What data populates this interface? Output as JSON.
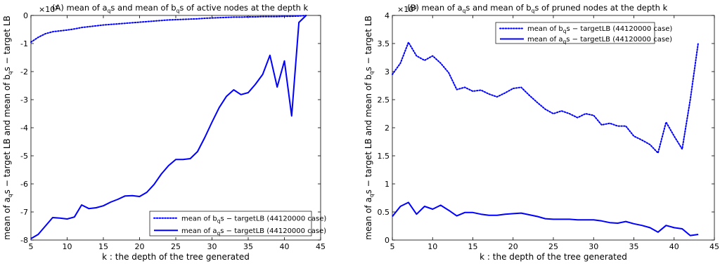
{
  "chart_data": [
    {
      "type": "line",
      "title_parts": [
        "(A) mean of a",
        "q",
        "s and mean of b",
        "q",
        "s of active nodes at the depth k"
      ],
      "xlabel": "k : the depth of the tree generated",
      "ylabel_parts": [
        "mean of a",
        "q",
        "s − target LB and mean of b",
        "q",
        "s − target LB"
      ],
      "exponent_label": "×10",
      "exponent_power": "5",
      "xlim": [
        5,
        45
      ],
      "ylim": [
        -8,
        0
      ],
      "x_ticks": [
        "5",
        "10",
        "15",
        "20",
        "25",
        "30",
        "35",
        "40",
        "45"
      ],
      "y_ticks": [
        "-8",
        "-7",
        "-6",
        "-5",
        "-4",
        "-3",
        "-2",
        "-1",
        "0"
      ],
      "legend_placement": "bottom-right",
      "series": [
        {
          "name_parts": [
            "mean of b",
            "q",
            "s − targetLB  (44120000 case)"
          ],
          "style": "dotted",
          "color": "#0000FF",
          "x": [
            5,
            6,
            7,
            8,
            9,
            10,
            11,
            12,
            13,
            14,
            15,
            16,
            17,
            18,
            19,
            20,
            21,
            22,
            23,
            24,
            25,
            26,
            27,
            28,
            29,
            30,
            31,
            32,
            33,
            34,
            35,
            36,
            37,
            38,
            39,
            40,
            41,
            42,
            43
          ],
          "y": [
            -0.95,
            -0.78,
            -0.65,
            -0.58,
            -0.55,
            -0.52,
            -0.48,
            -0.43,
            -0.4,
            -0.37,
            -0.34,
            -0.32,
            -0.3,
            -0.28,
            -0.26,
            -0.24,
            -0.22,
            -0.2,
            -0.18,
            -0.16,
            -0.15,
            -0.14,
            -0.13,
            -0.12,
            -0.1,
            -0.09,
            -0.08,
            -0.07,
            -0.06,
            -0.06,
            -0.05,
            -0.05,
            -0.04,
            -0.04,
            -0.04,
            -0.03,
            -0.03,
            -0.02,
            0.0
          ]
        },
        {
          "name_parts": [
            "mean of a",
            "q",
            "s − targetLB  (44120000 case)"
          ],
          "style": "solid",
          "color": "#0000FF",
          "x": [
            5,
            6,
            7,
            8,
            9,
            10,
            11,
            12,
            13,
            14,
            15,
            16,
            17,
            18,
            19,
            20,
            21,
            22,
            23,
            24,
            25,
            26,
            27,
            28,
            29,
            30,
            31,
            32,
            33,
            34,
            35,
            36,
            37,
            38,
            39,
            40,
            41,
            42,
            43
          ],
          "y": [
            -7.95,
            -7.8,
            -7.5,
            -7.2,
            -7.22,
            -7.25,
            -7.18,
            -6.75,
            -6.88,
            -6.85,
            -6.78,
            -6.65,
            -6.55,
            -6.43,
            -6.42,
            -6.45,
            -6.3,
            -6.02,
            -5.65,
            -5.35,
            -5.13,
            -5.13,
            -5.1,
            -4.85,
            -4.35,
            -3.8,
            -3.28,
            -2.88,
            -2.65,
            -2.82,
            -2.75,
            -2.45,
            -2.1,
            -1.42,
            -2.55,
            -1.62,
            -3.58,
            -0.25,
            0.0
          ]
        }
      ]
    },
    {
      "type": "line",
      "title_parts": [
        "(B) mean of a",
        "q",
        "s and mean of b",
        "q",
        "s of pruned nodes at the depth k"
      ],
      "xlabel": "k : the depth of the tree generated",
      "ylabel_parts": [
        "mean of a",
        "q",
        "s − target LB and mean of b",
        "q",
        "s − target LB"
      ],
      "exponent_label": "×10",
      "exponent_power": "4",
      "xlim": [
        5,
        45
      ],
      "ylim": [
        0,
        4
      ],
      "x_ticks": [
        "5",
        "10",
        "15",
        "20",
        "25",
        "30",
        "35",
        "40",
        "45"
      ],
      "y_ticks": [
        "0",
        "0.5",
        "1",
        "1.5",
        "2",
        "2.5",
        "3",
        "3.5",
        "4"
      ],
      "legend_placement": "top-right",
      "series": [
        {
          "name_parts": [
            "mean of b",
            "q",
            "s − targetLB (44120000 case)"
          ],
          "style": "dotted",
          "color": "#0000FF",
          "x": [
            5,
            6,
            7,
            8,
            9,
            10,
            11,
            12,
            13,
            14,
            15,
            16,
            17,
            18,
            19,
            20,
            21,
            22,
            23,
            24,
            25,
            26,
            27,
            28,
            29,
            30,
            31,
            32,
            33,
            34,
            35,
            36,
            37,
            38,
            39,
            40,
            41,
            42,
            43
          ],
          "y": [
            2.95,
            3.15,
            3.52,
            3.28,
            3.2,
            3.28,
            3.15,
            2.98,
            2.68,
            2.72,
            2.65,
            2.67,
            2.6,
            2.55,
            2.62,
            2.7,
            2.72,
            2.58,
            2.45,
            2.33,
            2.25,
            2.3,
            2.25,
            2.18,
            2.25,
            2.22,
            2.05,
            2.08,
            2.03,
            2.03,
            1.85,
            1.78,
            1.7,
            1.55,
            2.1,
            1.85,
            1.62,
            2.5,
            3.52
          ]
        },
        {
          "name_parts": [
            "mean of a",
            "q",
            "s − targetLB  (44120000 case)"
          ],
          "style": "solid",
          "color": "#0000FF",
          "x": [
            5,
            6,
            7,
            8,
            9,
            10,
            11,
            12,
            13,
            14,
            15,
            16,
            17,
            18,
            19,
            20,
            21,
            22,
            23,
            24,
            25,
            26,
            27,
            28,
            29,
            30,
            31,
            32,
            33,
            34,
            35,
            36,
            37,
            38,
            39,
            40,
            41,
            42,
            43
          ],
          "y": [
            0.42,
            0.6,
            0.67,
            0.46,
            0.6,
            0.55,
            0.62,
            0.53,
            0.43,
            0.49,
            0.49,
            0.46,
            0.44,
            0.44,
            0.46,
            0.47,
            0.48,
            0.45,
            0.42,
            0.38,
            0.37,
            0.37,
            0.37,
            0.36,
            0.36,
            0.36,
            0.34,
            0.31,
            0.3,
            0.33,
            0.29,
            0.26,
            0.22,
            0.14,
            0.26,
            0.22,
            0.2,
            0.08,
            0.1
          ]
        }
      ]
    }
  ]
}
